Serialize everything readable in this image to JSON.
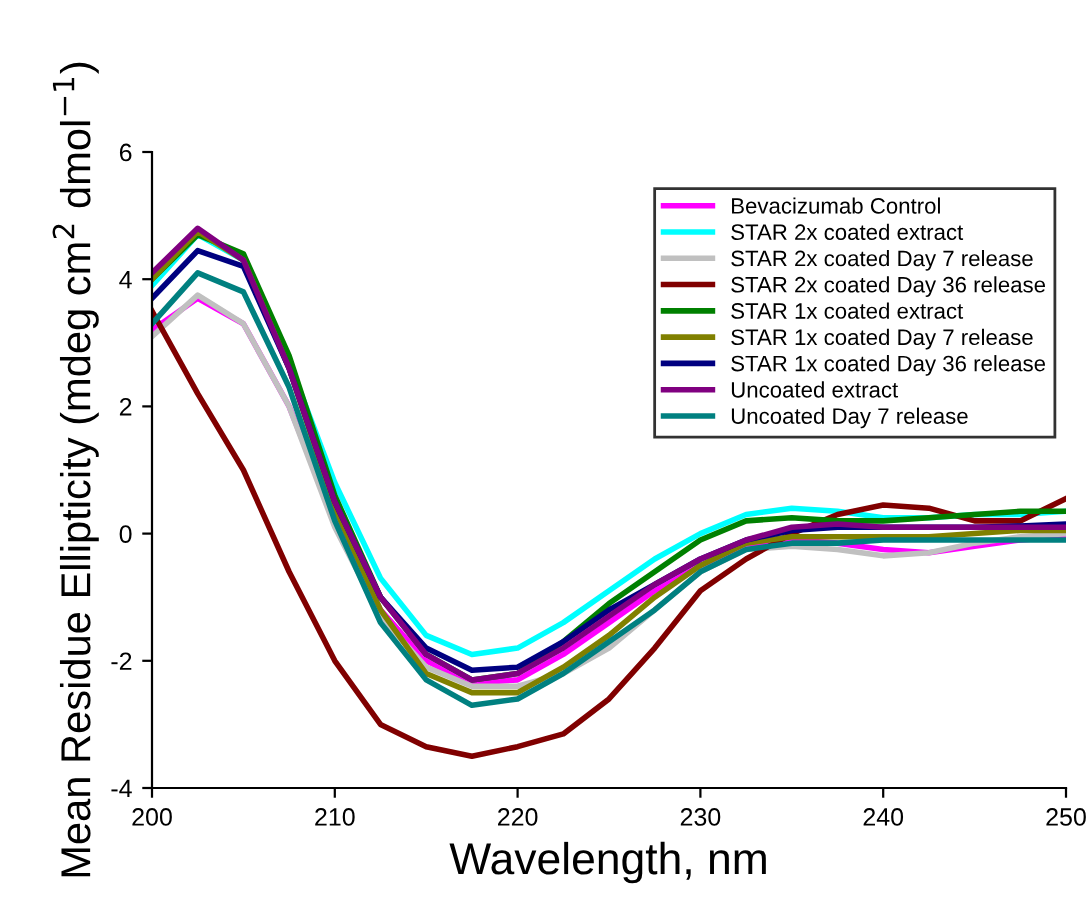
{
  "chart_data": {
    "type": "line",
    "xlabel": "Wavelength, nm",
    "ylabel": "Mean Residue Ellipticity (mdeg cm$^{2}$ dmol$^{−1}$)",
    "x": [
      200,
      202.5,
      205,
      207.5,
      210,
      212.5,
      215,
      217.5,
      220,
      222.5,
      225,
      227.5,
      230,
      232.5,
      235,
      237.5,
      240,
      242.5,
      245,
      247.5,
      250
    ],
    "xlim": [
      200,
      250
    ],
    "xticks": [
      200,
      210,
      220,
      230,
      240,
      250
    ],
    "ylim": [
      -4,
      6
    ],
    "yticks": [
      -4,
      -2,
      0,
      2,
      4,
      6
    ],
    "grid": false,
    "legend": "top right",
    "marker": "none",
    "line_style": "solid",
    "series": [
      {
        "name": "Bevacizumab Control",
        "color": "#ff00ff",
        "values": [
          3.2,
          3.7,
          3.3,
          2.0,
          0.2,
          -1.2,
          -2.0,
          -2.35,
          -2.3,
          -1.9,
          -1.4,
          -0.9,
          -0.5,
          -0.2,
          -0.1,
          -0.15,
          -0.25,
          -0.3,
          -0.2,
          -0.1,
          -0.05
        ]
      },
      {
        "name": "STAR 2x coated extract",
        "color": "#00ffff",
        "values": [
          3.9,
          4.7,
          4.3,
          2.7,
          0.8,
          -0.7,
          -1.6,
          -1.9,
          -1.8,
          -1.4,
          -0.9,
          -0.4,
          0.0,
          0.3,
          0.4,
          0.35,
          0.25,
          0.25,
          0.3,
          0.3,
          0.35
        ]
      },
      {
        "name": "STAR 2x coated Day 7 release",
        "color": "#c0c0c0",
        "values": [
          3.1,
          3.75,
          3.3,
          2.0,
          0.1,
          -1.3,
          -2.1,
          -2.4,
          -2.4,
          -2.2,
          -1.8,
          -1.2,
          -0.6,
          -0.25,
          -0.2,
          -0.25,
          -0.35,
          -0.3,
          -0.15,
          -0.05,
          0.0
        ]
      },
      {
        "name": "STAR 2x coated Day 36 release",
        "color": "#800000",
        "values": [
          3.5,
          2.2,
          1.0,
          -0.6,
          -2.0,
          -3.0,
          -3.35,
          -3.5,
          -3.35,
          -3.15,
          -2.6,
          -1.8,
          -0.9,
          -0.4,
          0.0,
          0.3,
          0.45,
          0.4,
          0.2,
          0.2,
          0.55
        ]
      },
      {
        "name": "STAR 1x coated extract",
        "color": "#008000",
        "values": [
          4.0,
          4.7,
          4.4,
          2.8,
          0.6,
          -1.0,
          -1.9,
          -2.3,
          -2.2,
          -1.7,
          -1.1,
          -0.6,
          -0.1,
          0.2,
          0.25,
          0.2,
          0.2,
          0.25,
          0.3,
          0.35,
          0.35
        ]
      },
      {
        "name": "STAR 1x coated Day 7 release",
        "color": "#808000",
        "values": [
          4.0,
          4.75,
          4.3,
          2.6,
          0.4,
          -1.2,
          -2.2,
          -2.5,
          -2.5,
          -2.1,
          -1.6,
          -1.0,
          -0.5,
          -0.15,
          -0.05,
          -0.05,
          -0.05,
          -0.05,
          0.0,
          0.05,
          0.05
        ]
      },
      {
        "name": "STAR 1x coated Day 36 release",
        "color": "#000080",
        "values": [
          3.7,
          4.45,
          4.2,
          2.6,
          0.5,
          -1.0,
          -1.8,
          -2.15,
          -2.1,
          -1.7,
          -1.2,
          -0.8,
          -0.4,
          -0.1,
          0.05,
          0.1,
          0.1,
          0.1,
          0.1,
          0.12,
          0.15
        ]
      },
      {
        "name": "Uncoated extract",
        "color": "#800080",
        "values": [
          4.1,
          4.8,
          4.3,
          2.6,
          0.5,
          -1.0,
          -1.9,
          -2.3,
          -2.2,
          -1.8,
          -1.3,
          -0.8,
          -0.4,
          -0.1,
          0.1,
          0.15,
          0.1,
          0.1,
          0.1,
          0.1,
          0.1
        ]
      },
      {
        "name": "Uncoated Day 7 release",
        "color": "#008080",
        "values": [
          3.3,
          4.1,
          3.8,
          2.3,
          0.2,
          -1.4,
          -2.3,
          -2.7,
          -2.6,
          -2.2,
          -1.7,
          -1.2,
          -0.6,
          -0.25,
          -0.15,
          -0.15,
          -0.1,
          -0.1,
          -0.1,
          -0.1,
          -0.1
        ]
      }
    ]
  }
}
